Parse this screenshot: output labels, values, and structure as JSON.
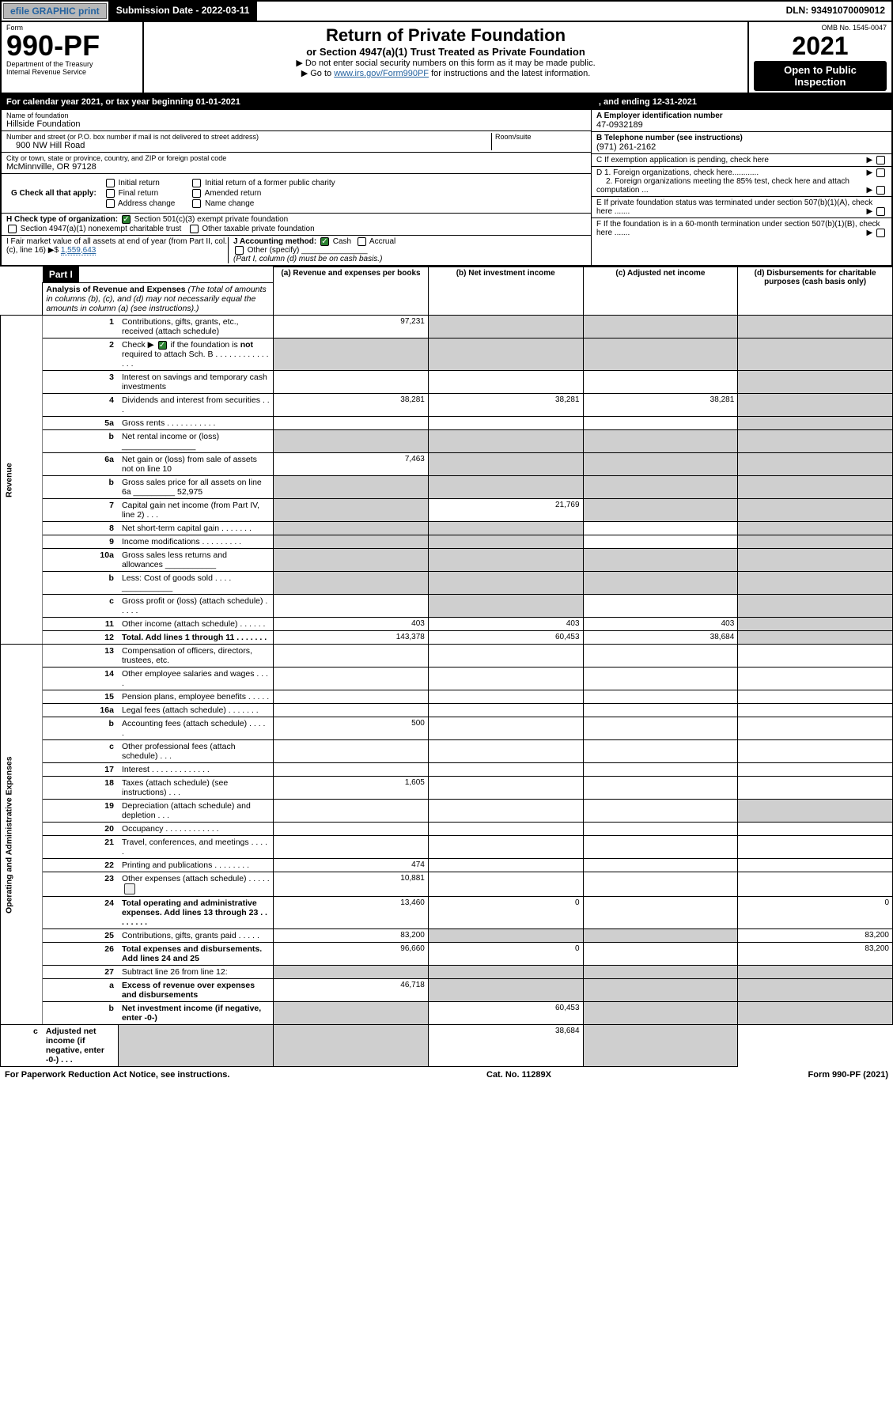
{
  "topbar": {
    "efile": "efile GRAPHIC print",
    "sub_label": "Submission Date - 2022-03-11",
    "dln": "DLN: 93491070009012"
  },
  "header": {
    "form_label": "Form",
    "form_no": "990-PF",
    "dept": "Department of the Treasury",
    "irs": "Internal Revenue Service",
    "title": "Return of Private Foundation",
    "subtitle": "or Section 4947(a)(1) Trust Treated as Private Foundation",
    "note1": "▶ Do not enter social security numbers on this form as it may be made public.",
    "note2_pre": "▶ Go to ",
    "note2_link": "www.irs.gov/Form990PF",
    "note2_post": " for instructions and the latest information.",
    "omb": "OMB No. 1545-0047",
    "year": "2021",
    "open_pub": "Open to Public Inspection"
  },
  "cal": {
    "text": "For calendar year 2021, or tax year beginning 01-01-2021",
    "mid": ", and ending 12-31-2021"
  },
  "entity": {
    "name_lbl": "Name of foundation",
    "name": "Hillside Foundation",
    "addr_lbl": "Number and street (or P.O. box number if mail is not delivered to street address)",
    "addr": "900 NW Hill Road",
    "room_lbl": "Room/suite",
    "city_lbl": "City or town, state or province, country, and ZIP or foreign postal code",
    "city": "McMinnville, OR  97128",
    "ein_lbl": "A Employer identification number",
    "ein": "47-0932189",
    "tel_lbl": "B Telephone number (see instructions)",
    "tel": "(971) 261-2162",
    "c_lbl": "C If exemption application is pending, check here",
    "d1": "D 1. Foreign organizations, check here............",
    "d2": "2. Foreign organizations meeting the 85% test, check here and attach computation ...",
    "e_lbl": "E  If private foundation status was terminated under section 507(b)(1)(A), check here .......",
    "f_lbl": "F  If the foundation is in a 60-month termination under section 507(b)(1)(B), check here .......",
    "g_lbl": "G Check all that apply:",
    "g_opts": [
      "Initial return",
      "Final return",
      "Address change",
      "Initial return of a former public charity",
      "Amended return",
      "Name change"
    ],
    "h_lbl": "H Check type of organization:",
    "h1": "Section 501(c)(3) exempt private foundation",
    "h2": "Section 4947(a)(1) nonexempt charitable trust",
    "h3": "Other taxable private foundation",
    "i_lbl": "I Fair market value of all assets at end of year (from Part II, col. (c), line 16)",
    "i_val": "1,559,643",
    "i_prefix": "▶$",
    "j_lbl": "J Accounting method:",
    "j_cash": "Cash",
    "j_accr": "Accrual",
    "j_other": "Other (specify)",
    "j_note": "(Part I, column (d) must be on cash basis.)"
  },
  "part1": {
    "label": "Part I",
    "title": "Analysis of Revenue and Expenses",
    "title_note": "(The total of amounts in columns (b), (c), and (d) may not necessarily equal the amounts in column (a) (see instructions).)",
    "col_a": "(a)   Revenue and expenses per books",
    "col_b": "(b)   Net investment income",
    "col_c": "(c)   Adjusted net income",
    "col_d": "(d)   Disbursements for charitable purposes (cash basis only)"
  },
  "side_labels": {
    "rev": "Revenue",
    "ops": "Operating and Administrative Expenses"
  },
  "rows": [
    {
      "n": "1",
      "label": "Contributions, gifts, grants, etc., received (attach schedule)",
      "a": "97,231",
      "b": "",
      "c": "",
      "d": "",
      "shade_b": true,
      "shade_c": true,
      "shade_d": true
    },
    {
      "n": "2",
      "label": "Check ▶  if the foundation is not required to attach Sch. B",
      "check": true,
      "a": "",
      "b": "",
      "c": "",
      "d": "",
      "shade_a": true,
      "shade_b": true,
      "shade_c": true,
      "shade_d": true,
      "bold_part": "not"
    },
    {
      "n": "3",
      "label": "Interest on savings and temporary cash investments",
      "a": "",
      "b": "",
      "c": "",
      "d": "",
      "shade_d": true
    },
    {
      "n": "4",
      "label": "Dividends and interest from securities   .   .   .",
      "a": "38,281",
      "b": "38,281",
      "c": "38,281",
      "d": "",
      "shade_d": true
    },
    {
      "n": "5a",
      "label": "Gross rents    .   .   .   .   .   .   .   .   .   .   .",
      "a": "",
      "b": "",
      "c": "",
      "d": "",
      "shade_d": true
    },
    {
      "n": "b",
      "label": "Net rental income or (loss) ________________",
      "a": "",
      "b": "",
      "c": "",
      "d": "",
      "shade_a": true,
      "shade_b": true,
      "shade_c": true,
      "shade_d": true
    },
    {
      "n": "6a",
      "label": "Net gain or (loss) from sale of assets not on line 10",
      "a": "7,463",
      "b": "",
      "c": "",
      "d": "",
      "shade_b": true,
      "shade_c": true,
      "shade_d": true
    },
    {
      "n": "b",
      "label": "Gross sales price for all assets on line 6a _________ 52,975",
      "a": "",
      "b": "",
      "c": "",
      "d": "",
      "shade_a": true,
      "shade_b": true,
      "shade_c": true,
      "shade_d": true
    },
    {
      "n": "7",
      "label": "Capital gain net income (from Part IV, line 2)   .   .   .",
      "a": "",
      "b": "21,769",
      "c": "",
      "d": "",
      "shade_a": true,
      "shade_c": true,
      "shade_d": true
    },
    {
      "n": "8",
      "label": "Net short-term capital gain   .   .   .   .   .   .   .",
      "a": "",
      "b": "",
      "c": "",
      "d": "",
      "shade_a": true,
      "shade_b": true,
      "shade_d": true
    },
    {
      "n": "9",
      "label": "Income modifications   .   .   .   .   .   .   .   .   .",
      "a": "",
      "b": "",
      "c": "",
      "d": "",
      "shade_a": true,
      "shade_b": true,
      "shade_d": true
    },
    {
      "n": "10a",
      "label": "Gross sales less returns and allowances  ___________",
      "a": "",
      "b": "",
      "c": "",
      "d": "",
      "shade_a": true,
      "shade_b": true,
      "shade_c": true,
      "shade_d": true
    },
    {
      "n": "b",
      "label": "Less: Cost of goods sold   .   .   .   .   ___________",
      "a": "",
      "b": "",
      "c": "",
      "d": "",
      "shade_a": true,
      "shade_b": true,
      "shade_c": true,
      "shade_d": true
    },
    {
      "n": "c",
      "label": "Gross profit or (loss) (attach schedule)   .   .   .   .   .",
      "a": "",
      "b": "",
      "c": "",
      "d": "",
      "shade_b": true,
      "shade_d": true
    },
    {
      "n": "11",
      "label": "Other income (attach schedule)   .   .   .   .   .   .",
      "a": "403",
      "b": "403",
      "c": "403",
      "d": "",
      "shade_d": true
    },
    {
      "n": "12",
      "label": "Total. Add lines 1 through 11   .   .   .   .   .   .   .",
      "a": "143,378",
      "b": "60,453",
      "c": "38,684",
      "d": "",
      "bold": true,
      "shade_d": true
    },
    {
      "n": "13",
      "label": "Compensation of officers, directors, trustees, etc.",
      "a": "",
      "b": "",
      "c": "",
      "d": ""
    },
    {
      "n": "14",
      "label": "Other employee salaries and wages   .   .   .   .",
      "a": "",
      "b": "",
      "c": "",
      "d": ""
    },
    {
      "n": "15",
      "label": "Pension plans, employee benefits   .   .   .   .   .",
      "a": "",
      "b": "",
      "c": "",
      "d": ""
    },
    {
      "n": "16a",
      "label": "Legal fees (attach schedule)   .   .   .   .   .   .   .",
      "a": "",
      "b": "",
      "c": "",
      "d": ""
    },
    {
      "n": "b",
      "label": "Accounting fees (attach schedule)   .   .   .   .   .",
      "a": "500",
      "b": "",
      "c": "",
      "d": ""
    },
    {
      "n": "c",
      "label": "Other professional fees (attach schedule)   .   .   .",
      "a": "",
      "b": "",
      "c": "",
      "d": ""
    },
    {
      "n": "17",
      "label": "Interest   .   .   .   .   .   .   .   .   .   .   .   .   .",
      "a": "",
      "b": "",
      "c": "",
      "d": ""
    },
    {
      "n": "18",
      "label": "Taxes (attach schedule) (see instructions)   .   .   .",
      "a": "1,605",
      "b": "",
      "c": "",
      "d": ""
    },
    {
      "n": "19",
      "label": "Depreciation (attach schedule) and depletion   .   .   .",
      "a": "",
      "b": "",
      "c": "",
      "d": "",
      "shade_d": true
    },
    {
      "n": "20",
      "label": "Occupancy   .   .   .   .   .   .   .   .   .   .   .   .",
      "a": "",
      "b": "",
      "c": "",
      "d": ""
    },
    {
      "n": "21",
      "label": "Travel, conferences, and meetings   .   .   .   .   .",
      "a": "",
      "b": "",
      "c": "",
      "d": ""
    },
    {
      "n": "22",
      "label": "Printing and publications   .   .   .   .   .   .   .   .",
      "a": "474",
      "b": "",
      "c": "",
      "d": ""
    },
    {
      "n": "23",
      "label": "Other expenses (attach schedule)   .   .   .   .   .",
      "a": "10,881",
      "b": "",
      "c": "",
      "d": "",
      "icon": true
    },
    {
      "n": "24",
      "label": "Total operating and administrative expenses. Add lines 13 through 23   .   .   .   .   .   .   .   .",
      "a": "13,460",
      "b": "0",
      "c": "",
      "d": "0",
      "bold": true
    },
    {
      "n": "25",
      "label": "Contributions, gifts, grants paid   .   .   .   .   .",
      "a": "83,200",
      "b": "",
      "c": "",
      "d": "83,200",
      "shade_b": true,
      "shade_c": true
    },
    {
      "n": "26",
      "label": "Total expenses and disbursements. Add lines 24 and 25",
      "a": "96,660",
      "b": "0",
      "c": "",
      "d": "83,200",
      "bold": true
    },
    {
      "n": "27",
      "label": "Subtract line 26 from line 12:",
      "a": "",
      "b": "",
      "c": "",
      "d": "",
      "shade_a": true,
      "shade_b": true,
      "shade_c": true,
      "shade_d": true
    },
    {
      "n": "a",
      "label": "Excess of revenue over expenses and disbursements",
      "a": "46,718",
      "b": "",
      "c": "",
      "d": "",
      "bold": true,
      "shade_b": true,
      "shade_c": true,
      "shade_d": true
    },
    {
      "n": "b",
      "label": "Net investment income (if negative, enter -0-)",
      "a": "",
      "b": "60,453",
      "c": "",
      "d": "",
      "bold": true,
      "shade_a": true,
      "shade_c": true,
      "shade_d": true
    },
    {
      "n": "c",
      "label": "Adjusted net income (if negative, enter -0-)   .   .   .",
      "a": "",
      "b": "",
      "c": "38,684",
      "d": "",
      "bold": true,
      "shade_a": true,
      "shade_b": true,
      "shade_d": true
    }
  ],
  "footer": {
    "left": "For Paperwork Reduction Act Notice, see instructions.",
    "mid": "Cat. No. 11289X",
    "right": "Form 990-PF (2021)"
  }
}
